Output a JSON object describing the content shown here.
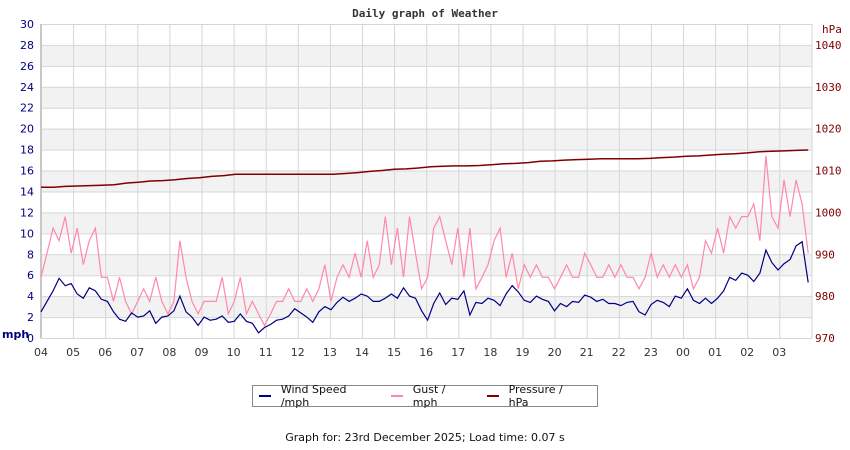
{
  "chart_data": {
    "type": "line",
    "title": "Daily graph of Weather",
    "xlabel": "",
    "ylabel_left": "mph",
    "ylabel_right": "hPa",
    "ylim_left": [
      0,
      30
    ],
    "ylim_right": [
      970,
      1045
    ],
    "left_ticks": [
      "0",
      "2",
      "4",
      "6",
      "8",
      "10",
      "12",
      "14",
      "16",
      "18",
      "20",
      "22",
      "24",
      "26",
      "28",
      "30"
    ],
    "right_ticks": [
      "970",
      "980",
      "990",
      "1000",
      "1010",
      "1020",
      "1030",
      "1040"
    ],
    "x_tick_labels": [
      "04",
      "05",
      "06",
      "07",
      "08",
      "09",
      "10",
      "11",
      "12",
      "13",
      "14",
      "15",
      "16",
      "17",
      "18",
      "19",
      "20",
      "21",
      "22",
      "23",
      "00",
      "01",
      "02",
      "03"
    ],
    "grid": true,
    "legend_position": "bottom",
    "colors": {
      "wind": "#000080",
      "gust": "#ff88aa",
      "pressure": "#800000",
      "band": "#f2f2f2",
      "grid": "#d6d6d6"
    },
    "x_hours": [
      0,
      0.25,
      0.5,
      0.75,
      1,
      1.25,
      1.5,
      1.75,
      2,
      2.25,
      2.5,
      2.75,
      3,
      3.25,
      3.5,
      3.75,
      4,
      4.25,
      4.5,
      4.75,
      5,
      5.25,
      5.5,
      5.75,
      6,
      6.25,
      6.5,
      6.75,
      7,
      7.25,
      7.5,
      7.75,
      8,
      8.25,
      8.5,
      8.75,
      9,
      9.25,
      9.5,
      9.75,
      10,
      10.25,
      10.5,
      10.75,
      11,
      11.25,
      11.5,
      11.75,
      12,
      12.25,
      12.5,
      12.75,
      13,
      13.25,
      13.5,
      13.75,
      14,
      14.25,
      14.5,
      14.75,
      15,
      15.25,
      15.5,
      15.75,
      16,
      16.25,
      16.5,
      16.75,
      17,
      17.25,
      17.5,
      17.75,
      18,
      18.25,
      18.5,
      18.75,
      19,
      19.25,
      19.5,
      19.75,
      20,
      20.25,
      20.5,
      20.75,
      21,
      21.25,
      21.5,
      21.75,
      22,
      22.25,
      22.5,
      22.75,
      23,
      23.25,
      23.5,
      23.75,
      23.9
    ],
    "series": [
      {
        "name": "Wind Speed /mph",
        "axis": "left",
        "values": [
          2.5,
          3.5,
          4.5,
          5.7,
          5.0,
          5.2,
          4.2,
          3.8,
          4.8,
          4.5,
          3.7,
          3.5,
          2.5,
          1.8,
          1.6,
          2.4,
          2.0,
          2.1,
          2.6,
          1.4,
          2.0,
          2.1,
          2.6,
          4.0,
          2.5,
          2.0,
          1.2,
          2.0,
          1.7,
          1.8,
          2.1,
          1.5,
          1.6,
          2.3,
          1.6,
          1.4,
          0.5,
          1.0,
          1.3,
          1.7,
          1.8,
          2.1,
          2.8,
          2.4,
          2.0,
          1.5,
          2.5,
          3.0,
          2.7,
          3.4,
          3.9,
          3.5,
          3.8,
          4.2,
          4.0,
          3.5,
          3.5,
          3.8,
          4.2,
          3.8,
          4.8,
          4.0,
          3.8,
          2.6,
          1.7,
          3.3,
          4.3,
          3.2,
          3.8,
          3.7,
          4.5,
          2.2,
          3.4,
          3.3,
          3.8,
          3.6,
          3.1,
          4.2,
          5.0,
          4.4,
          3.6,
          3.4,
          4.0,
          3.7,
          3.5,
          2.6,
          3.3,
          3.0,
          3.5,
          3.4,
          4.1,
          3.9,
          3.5,
          3.7,
          3.3,
          3.3,
          3.1,
          3.4,
          3.5,
          2.5,
          2.2,
          3.2,
          3.6,
          3.4,
          3.0,
          4.0,
          3.8,
          4.7,
          3.6,
          3.3,
          3.8,
          3.3,
          3.8,
          4.5,
          5.8,
          5.5,
          6.2,
          6.0,
          5.4,
          6.2,
          8.4,
          7.2,
          6.5,
          7.1,
          7.5,
          8.8,
          9.2,
          5.3
        ]
      },
      {
        "name": "Gust / mph",
        "axis": "left",
        "values": [
          5.8,
          8.1,
          10.5,
          9.3,
          11.6,
          8.1,
          10.5,
          7.0,
          9.3,
          10.5,
          5.8,
          5.8,
          3.5,
          5.8,
          3.5,
          2.3,
          3.5,
          4.7,
          3.5,
          5.8,
          3.5,
          2.3,
          3.5,
          9.3,
          5.8,
          3.5,
          2.3,
          3.5,
          3.5,
          3.5,
          5.8,
          2.3,
          3.5,
          5.8,
          2.3,
          3.5,
          2.3,
          1.2,
          2.3,
          3.5,
          3.5,
          4.7,
          3.5,
          3.5,
          4.7,
          3.5,
          4.7,
          7.0,
          3.5,
          5.8,
          7.0,
          5.8,
          8.1,
          5.8,
          9.3,
          5.8,
          7.0,
          11.6,
          7.0,
          10.5,
          5.8,
          11.6,
          8.1,
          4.7,
          5.8,
          10.5,
          11.6,
          9.3,
          7.0,
          10.5,
          5.8,
          10.5,
          4.7,
          5.8,
          7.0,
          9.3,
          10.5,
          5.8,
          8.1,
          4.7,
          7.0,
          5.8,
          7.0,
          5.8,
          5.8,
          4.7,
          5.8,
          7.0,
          5.8,
          5.8,
          8.1,
          7.0,
          5.8,
          5.8,
          7.0,
          5.8,
          7.0,
          5.8,
          5.8,
          4.7,
          5.8,
          8.1,
          5.8,
          7.0,
          5.8,
          7.0,
          5.8,
          7.0,
          4.7,
          5.8,
          9.3,
          8.1,
          10.5,
          8.1,
          11.6,
          10.5,
          11.6,
          11.6,
          12.8,
          9.3,
          17.4,
          11.6,
          10.5,
          15.1,
          11.6,
          15.1,
          12.8,
          8.1
        ]
      },
      {
        "name": "Pressure / hPa",
        "axis": "right",
        "values": [
          1006.0,
          1006.0,
          1006.2,
          1006.3,
          1006.4,
          1006.5,
          1006.6,
          1007.0,
          1007.2,
          1007.5,
          1007.6,
          1007.8,
          1008.1,
          1008.3,
          1008.6,
          1008.8,
          1009.1,
          1009.1,
          1009.1,
          1009.1,
          1009.1,
          1009.1,
          1009.1,
          1009.1,
          1009.1,
          1009.3,
          1009.5,
          1009.8,
          1010.0,
          1010.3,
          1010.4,
          1010.6,
          1010.9,
          1011.0,
          1011.1,
          1011.1,
          1011.2,
          1011.4,
          1011.6,
          1011.7,
          1011.9,
          1012.2,
          1012.3,
          1012.5,
          1012.6,
          1012.7,
          1012.8,
          1012.8,
          1012.8,
          1012.8,
          1012.9,
          1013.1,
          1013.2,
          1013.4,
          1013.5,
          1013.7,
          1013.9,
          1014.0,
          1014.2,
          1014.5,
          1014.6,
          1014.7,
          1014.8,
          1014.9
        ]
      }
    ]
  },
  "legend": {
    "items": [
      {
        "label": "Wind Speed /mph",
        "color": "#000080"
      },
      {
        "label": "Gust / mph",
        "color": "#ff88aa"
      },
      {
        "label": "Pressure / hPa",
        "color": "#800000"
      }
    ]
  },
  "footer": {
    "text": "Graph for: 23rd December 2025; Load time: 0.07 s"
  }
}
